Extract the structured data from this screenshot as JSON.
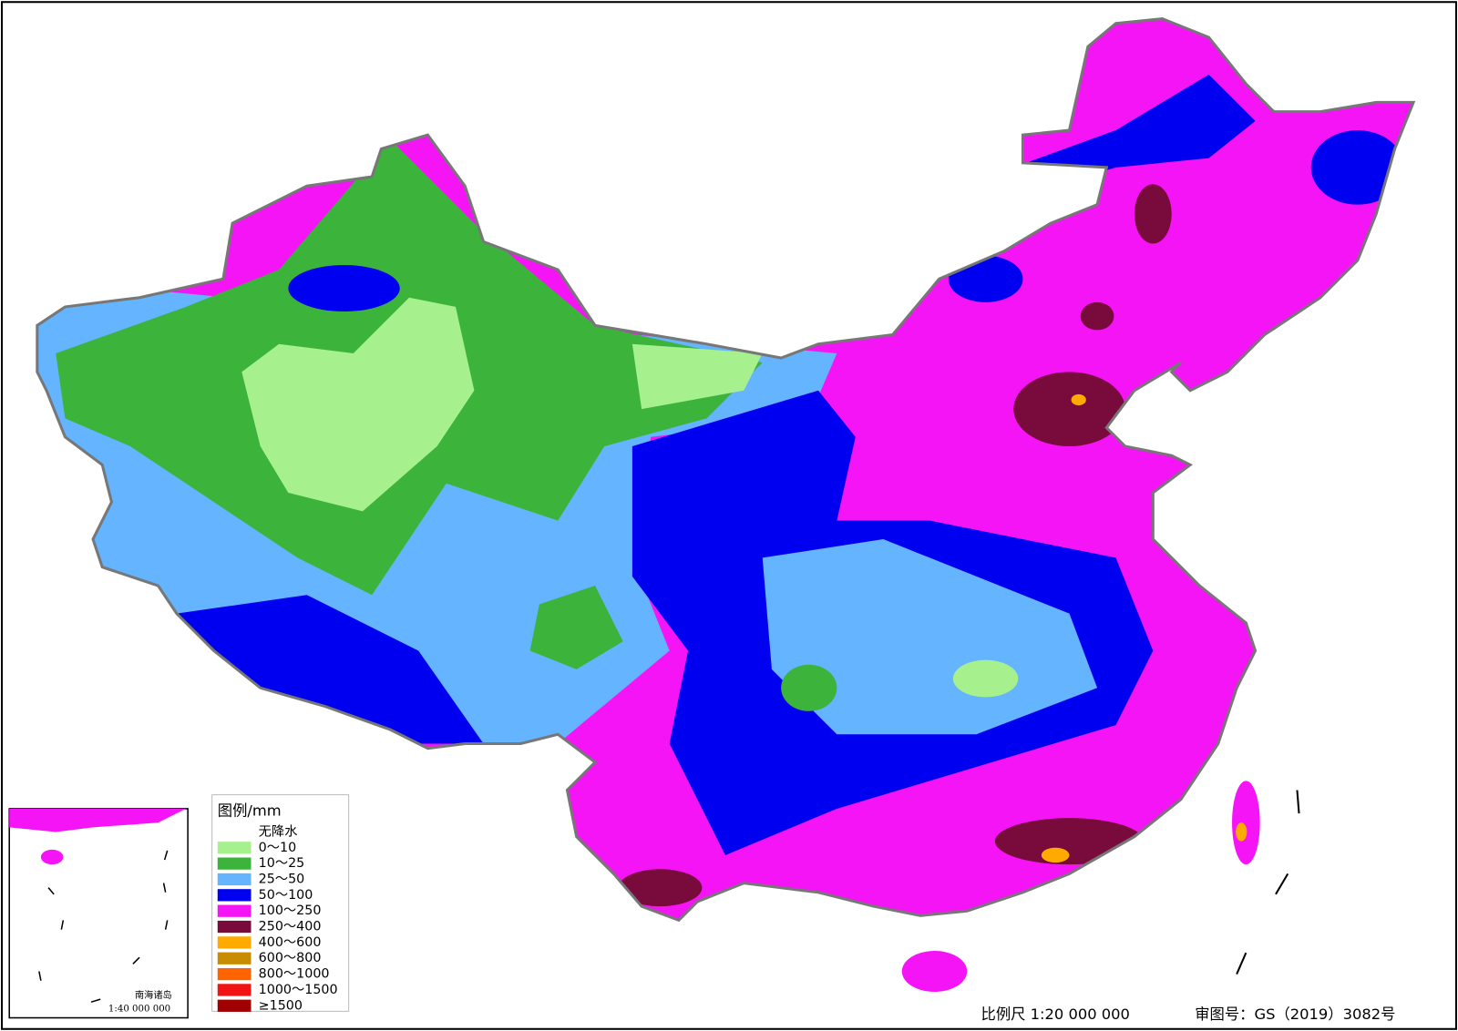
{
  "legend": {
    "title": "图例/mm",
    "items": [
      {
        "label": "无降水",
        "color": "#ffffff"
      },
      {
        "label": "0～10",
        "color": "#a6f08e"
      },
      {
        "label": "10～25",
        "color": "#3cb43c"
      },
      {
        "label": "25～50",
        "color": "#64b4ff"
      },
      {
        "label": "50～100",
        "color": "#0000f0"
      },
      {
        "label": "100～250",
        "color": "#f514f5"
      },
      {
        "label": "250～400",
        "color": "#780a3c"
      },
      {
        "label": "400～600",
        "color": "#ffaa00"
      },
      {
        "label": "600～800",
        "color": "#c88c00"
      },
      {
        "label": "800～1000",
        "color": "#ff6400"
      },
      {
        "label": "1000～1500",
        "color": "#f01414"
      },
      {
        "label": "≥1500",
        "color": "#a00000"
      }
    ]
  },
  "inset": {
    "label": "南海诸岛",
    "scale": "1:40 000 000"
  },
  "footer": {
    "scale": "比例尺 1:20 000 000",
    "review": "审图号：GS（2019）3082号"
  }
}
